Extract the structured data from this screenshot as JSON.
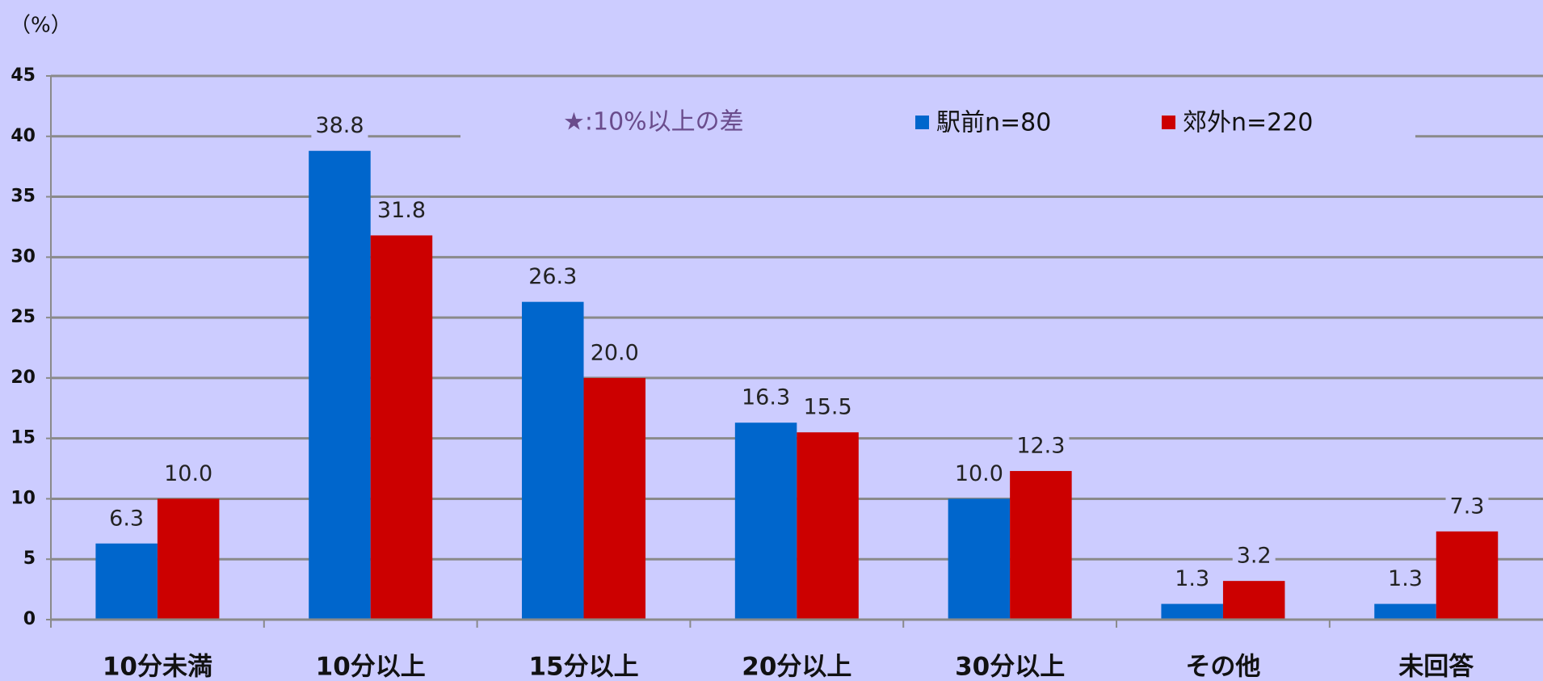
{
  "chart_data": {
    "type": "bar",
    "y_label": "（%）",
    "annotation": "★:10%以上の差",
    "categories": [
      "10分未満",
      "10分以上",
      "15分以上",
      "20分以上",
      "30分以上",
      "その他",
      "未回答"
    ],
    "series": [
      {
        "name": "駅前n=80",
        "color": "#0066cc",
        "values": [
          6.3,
          38.8,
          26.3,
          16.3,
          10.0,
          1.3,
          1.3
        ],
        "value_labels": [
          "6.3",
          "38.8",
          "26.3",
          "16.3",
          "10.0",
          "1.3",
          "1.3"
        ]
      },
      {
        "name": "郊外n=220",
        "color": "#cc0000",
        "values": [
          10.0,
          31.8,
          20.0,
          15.5,
          12.3,
          3.2,
          7.3
        ],
        "value_labels": [
          "10.0",
          "31.8",
          "20.0",
          "15.5",
          "12.3",
          "3.2",
          "7.3"
        ]
      }
    ],
    "ylim": [
      0,
      45
    ],
    "yticks": [
      0,
      5,
      10,
      15,
      20,
      25,
      30,
      35,
      40,
      45
    ],
    "grid": true
  }
}
